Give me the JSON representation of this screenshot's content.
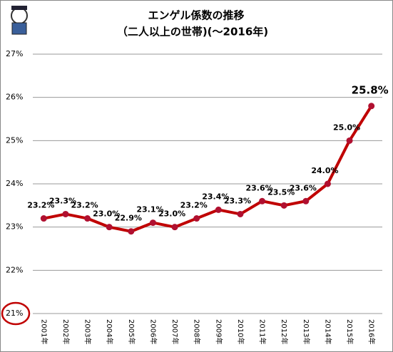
{
  "chart_data": {
    "type": "line",
    "title": "エンゲル係数の推移",
    "subtitle": "（二人以上の世帯)(～2016年)",
    "categories": [
      "2001年",
      "2002年",
      "2003年",
      "2004年",
      "2005年",
      "2006年",
      "2007年",
      "2008年",
      "2009年",
      "2010年",
      "2011年",
      "2012年",
      "2013年",
      "2014年",
      "2015年",
      "2016年"
    ],
    "series": [
      {
        "name": "エンゲル係数",
        "color": "#c00000",
        "values": [
          23.2,
          23.3,
          23.2,
          23.0,
          22.9,
          23.1,
          23.0,
          23.2,
          23.4,
          23.3,
          23.6,
          23.5,
          23.6,
          24.0,
          25.0,
          25.8
        ],
        "value_labels": [
          "23.2%",
          "23.3%",
          "23.2%",
          "23.0%",
          "22.9%",
          "23.1%",
          "23.0%",
          "23.2%",
          "23.4%",
          "23.3%",
          "23.6%",
          "23.5%",
          "23.6%",
          "24.0%",
          "25.0%",
          "25.8%"
        ]
      }
    ],
    "ylim": [
      21,
      27
    ],
    "yticks": [
      {
        "value": 21,
        "label": "21%"
      },
      {
        "value": 22,
        "label": "22%"
      },
      {
        "value": 23,
        "label": "23%"
      },
      {
        "value": 24,
        "label": "24%"
      },
      {
        "value": 25,
        "label": "25%"
      },
      {
        "value": 26,
        "label": "26%"
      },
      {
        "value": 27,
        "label": "27%"
      }
    ],
    "grid": true
  }
}
